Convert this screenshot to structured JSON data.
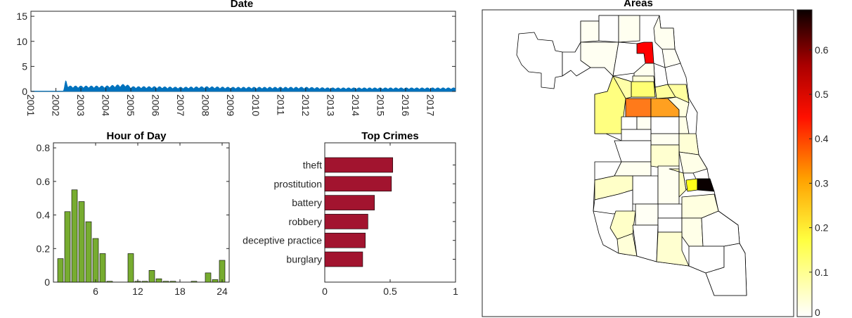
{
  "chart_data": [
    {
      "type": "area",
      "title": "Date",
      "ylim": [
        0,
        16
      ],
      "yticks": [
        0,
        5,
        10,
        15
      ],
      "xticks": [
        "2001",
        "2002",
        "2003",
        "2004",
        "2005",
        "2006",
        "2007",
        "2008",
        "2009",
        "2010",
        "2011",
        "2012",
        "2013",
        "2014",
        "2015",
        "2016",
        "2017"
      ],
      "x": [
        2001,
        2002.3,
        2002.4,
        2002.5,
        2003,
        2004,
        2004.8,
        2005,
        2006,
        2007,
        2008,
        2009,
        2010,
        2011,
        2012,
        2013,
        2014,
        2015,
        2016,
        2017,
        2018
      ],
      "values": [
        0.1,
        0.1,
        2.0,
        0.9,
        0.9,
        0.9,
        1.2,
        0.8,
        0.8,
        0.7,
        0.8,
        0.7,
        0.7,
        0.7,
        0.7,
        0.6,
        0.6,
        0.6,
        0.6,
        0.6,
        0.6
      ],
      "color": "#0072BD"
    },
    {
      "type": "bar",
      "title": "Hour of Day",
      "x": [
        1,
        2,
        3,
        4,
        5,
        6,
        7,
        8,
        9,
        10,
        11,
        12,
        13,
        14,
        15,
        16,
        17,
        18,
        19,
        20,
        21,
        22,
        23,
        24
      ],
      "values": [
        0.14,
        0.42,
        0.55,
        0.48,
        0.36,
        0.26,
        0.17,
        0.005,
        0.0,
        0.0,
        0.17,
        0.005,
        0.005,
        0.07,
        0.02,
        0.005,
        0.005,
        0.0,
        0.0,
        0.005,
        0.0,
        0.055,
        0.015,
        0.13
      ],
      "xticks": [
        6,
        12,
        18,
        24
      ],
      "yticks": [
        0,
        0.2,
        0.4,
        0.6,
        0.8
      ],
      "xlim": [
        0,
        25
      ],
      "ylim": [
        0,
        0.83
      ],
      "color": "#77AC30"
    },
    {
      "type": "bar",
      "orientation": "horizontal",
      "title": "Top Crimes",
      "categories": [
        "theft",
        "prostitution",
        "battery",
        "robbery",
        "deceptive practice",
        "burglary"
      ],
      "values": [
        0.52,
        0.51,
        0.38,
        0.33,
        0.31,
        0.29
      ],
      "xticks": [
        0,
        0.5,
        1
      ],
      "xlim": [
        0,
        1
      ],
      "color": "#A2142F"
    },
    {
      "type": "heatmap",
      "title": "Areas",
      "colorbar_ticks": [
        0,
        0.1,
        0.2,
        0.3,
        0.4,
        0.5,
        0.6
      ],
      "colorbar_tick_labels": [
        "0",
        "0.1",
        "0.2",
        "0.3",
        "0.4",
        "0.5",
        "0.6"
      ],
      "colorbar_range": [
        0,
        0.69
      ],
      "colormap": "hot (reversed)"
    }
  ]
}
